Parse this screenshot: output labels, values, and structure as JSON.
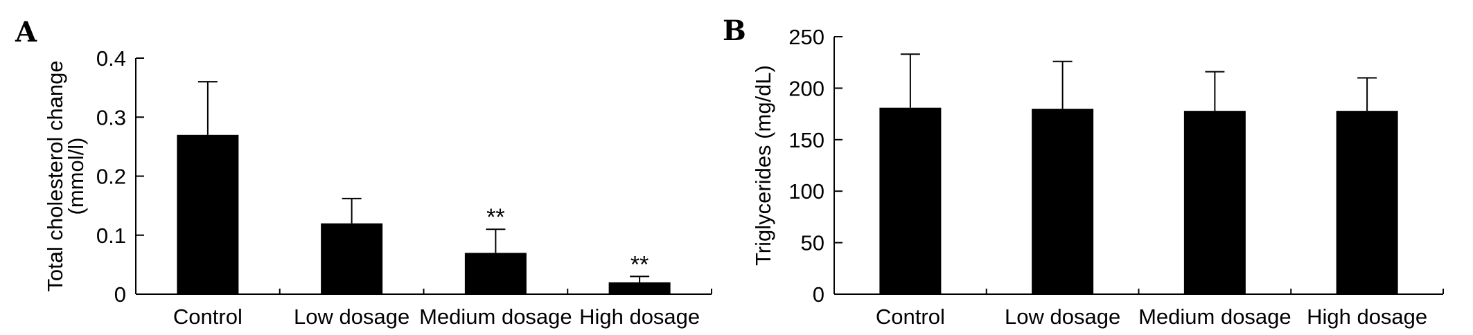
{
  "chart_data": [
    {
      "panel": "A",
      "type": "bar",
      "categories": [
        "Control",
        "Low dosage",
        "Medium dosage",
        "High dosage"
      ],
      "values": [
        0.27,
        0.12,
        0.07,
        0.02
      ],
      "error_upper": [
        0.36,
        0.162,
        0.11,
        0.03
      ],
      "annotations": [
        "",
        "",
        "**",
        "**"
      ],
      "ylabel_lines": [
        "Total cholesterol change",
        "(mmol/l)"
      ],
      "xlabel": "",
      "ylim": [
        0,
        0.4
      ],
      "yticks": [
        0,
        0.1,
        0.2,
        0.3,
        0.4
      ],
      "ytick_labels": [
        "0",
        "0.1",
        "0.2",
        "0.3",
        "0.4"
      ],
      "grid": false,
      "bar_color": "#000000"
    },
    {
      "panel": "B",
      "type": "bar",
      "categories": [
        "Control",
        "Low dosage",
        "Medium dosage",
        "High dosage"
      ],
      "values": [
        181,
        180,
        178,
        178
      ],
      "error_upper": [
        233,
        226,
        216,
        210
      ],
      "annotations": [
        "",
        "",
        "",
        ""
      ],
      "ylabel_lines": [
        "Triglycerides (mg/dL)"
      ],
      "xlabel": "",
      "ylim": [
        0,
        250
      ],
      "yticks": [
        0,
        50,
        100,
        150,
        200,
        250
      ],
      "ytick_labels": [
        "0",
        "50",
        "100",
        "150",
        "200",
        "250"
      ],
      "grid": false,
      "bar_color": "#000000"
    }
  ]
}
